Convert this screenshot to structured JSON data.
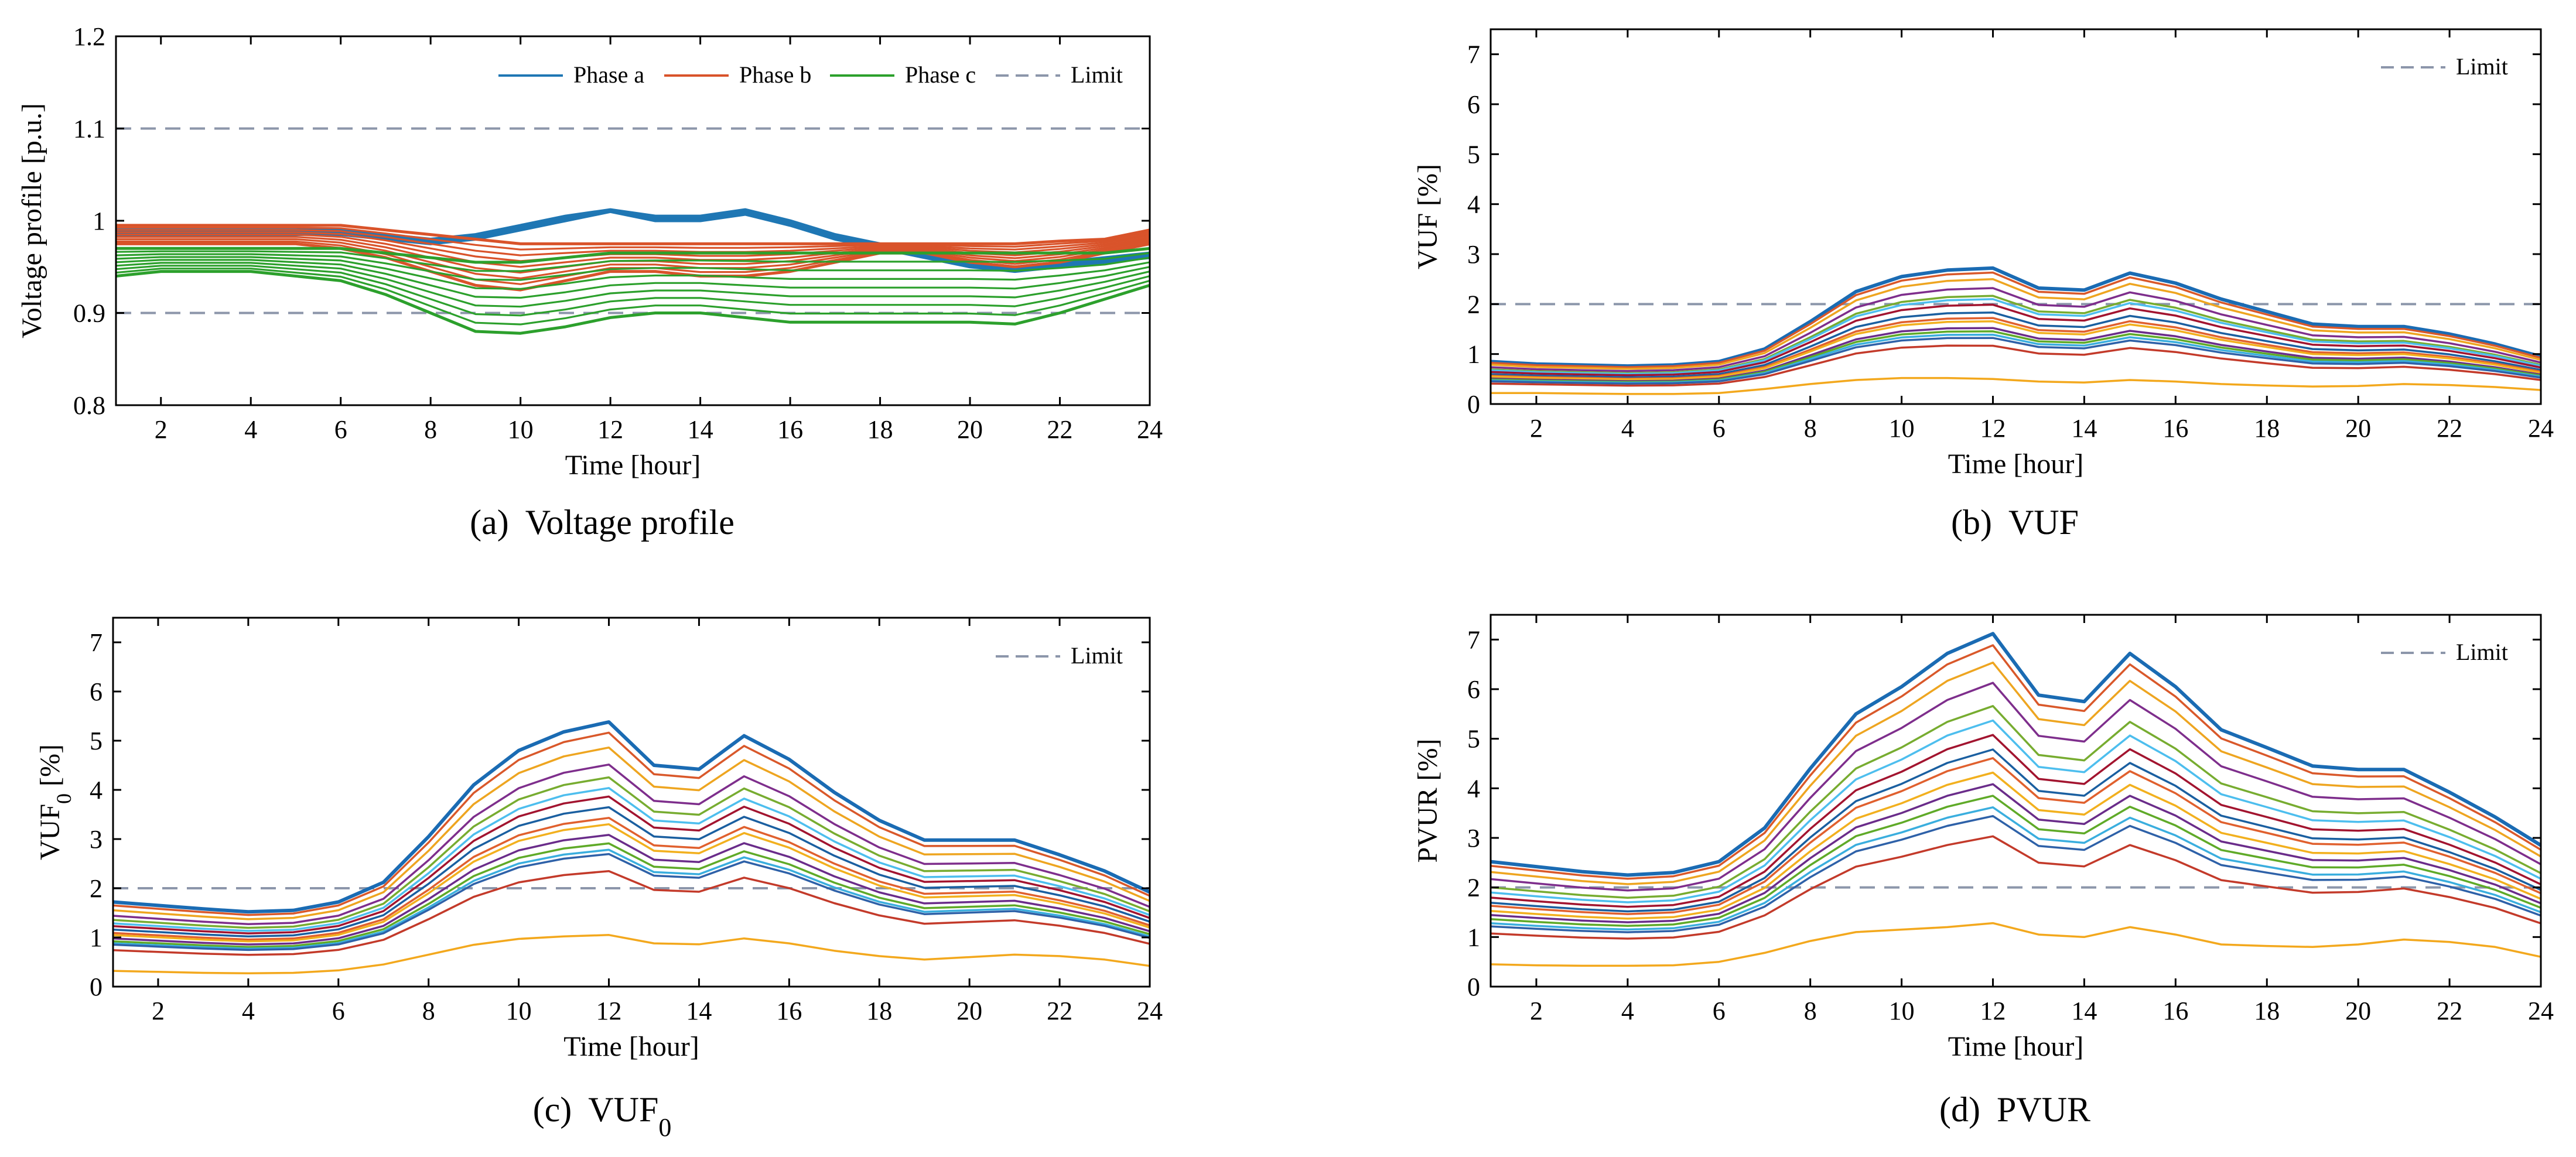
{
  "colors": {
    "phase_a": "#1f77b4",
    "phase_b": "#d9532a",
    "phase_c": "#2ca02c",
    "limit": "#8c96aa",
    "series_palette": [
      "#1a6bb3",
      "#d9582a",
      "#eea520",
      "#7e2e8c",
      "#77ac30",
      "#4dbeee",
      "#a2142f",
      "#1a5fa0",
      "#e0602e",
      "#f2b01e",
      "#6a2c8a",
      "#5faa28",
      "#3aaede",
      "#2e61a8",
      "#c33a2a",
      "#f3a81d",
      "#1e7bc1"
    ]
  },
  "chart_data": [
    {
      "id": "a",
      "type": "line",
      "caption_label": "(a)",
      "caption_text": "Voltage profile",
      "xlabel": "Time [hour]",
      "ylabel": "Voltage profile [p.u.]",
      "xlim": [
        1,
        24
      ],
      "ylim": [
        0.8,
        1.2
      ],
      "xticks": [
        2,
        4,
        6,
        8,
        10,
        12,
        14,
        16,
        18,
        20,
        22,
        24
      ],
      "yticks": [
        0.8,
        0.9,
        1,
        1.1,
        1.2
      ],
      "ytick_labels": [
        "0.8",
        "0.9",
        "1",
        "1.1",
        "1.2"
      ],
      "limits": [
        1.1,
        0.9
      ],
      "legend": [
        "Phase a",
        "Phase b",
        "Phase c",
        "Limit"
      ],
      "x": [
        1,
        2,
        3,
        4,
        5,
        6,
        7,
        8,
        9,
        10,
        11,
        12,
        13,
        14,
        15,
        16,
        17,
        18,
        19,
        20,
        21,
        22,
        23,
        24
      ],
      "phase_bases": {
        "a": [
          [
            0.99,
            0.99,
            0.99,
            0.99,
            0.99,
            0.99,
            0.985,
            0.98,
            0.985,
            0.995,
            1.005,
            1.012,
            1.005,
            1.005,
            1.012,
            1.0,
            0.985,
            0.975,
            0.965,
            0.955,
            0.95,
            0.955,
            0.96,
            0.965
          ],
          [
            0.985,
            0.985,
            0.985,
            0.985,
            0.985,
            0.985,
            0.98,
            0.975,
            0.98,
            0.99,
            1.0,
            1.01,
            1.0,
            1.0,
            1.007,
            0.995,
            0.98,
            0.97,
            0.96,
            0.95,
            0.945,
            0.95,
            0.955,
            0.96
          ]
        ],
        "b": [
          [
            0.995,
            0.995,
            0.995,
            0.995,
            0.995,
            0.995,
            0.99,
            0.985,
            0.98,
            0.975,
            0.975,
            0.975,
            0.975,
            0.975,
            0.975,
            0.975,
            0.975,
            0.975,
            0.975,
            0.975,
            0.975,
            0.978,
            0.98,
            0.99
          ],
          [
            0.975,
            0.975,
            0.975,
            0.975,
            0.975,
            0.97,
            0.96,
            0.945,
            0.93,
            0.925,
            0.935,
            0.945,
            0.945,
            0.94,
            0.94,
            0.945,
            0.955,
            0.965,
            0.965,
            0.955,
            0.95,
            0.955,
            0.965,
            0.975
          ]
        ],
        "c": [
          [
            0.97,
            0.97,
            0.97,
            0.97,
            0.97,
            0.97,
            0.965,
            0.96,
            0.955,
            0.955,
            0.96,
            0.965,
            0.965,
            0.965,
            0.965,
            0.965,
            0.965,
            0.965,
            0.965,
            0.965,
            0.965,
            0.965,
            0.965,
            0.97
          ],
          [
            0.94,
            0.945,
            0.945,
            0.945,
            0.94,
            0.935,
            0.92,
            0.9,
            0.88,
            0.878,
            0.885,
            0.895,
            0.9,
            0.9,
            0.895,
            0.89,
            0.89,
            0.89,
            0.89,
            0.89,
            0.888,
            0.9,
            0.915,
            0.93
          ]
        ]
      },
      "series_per_phase": 9
    },
    {
      "id": "b",
      "type": "line",
      "caption_label": "(b)",
      "caption_text": "VUF",
      "xlabel": "Time [hour]",
      "ylabel": "VUF [%]",
      "xlim": [
        1,
        24
      ],
      "ylim": [
        0,
        7.5
      ],
      "xticks": [
        2,
        4,
        6,
        8,
        10,
        12,
        14,
        16,
        18,
        20,
        22,
        24
      ],
      "yticks": [
        0,
        1,
        2,
        3,
        4,
        5,
        6,
        7
      ],
      "ytick_labels": [
        "0",
        "1",
        "2",
        "3",
        "4",
        "5",
        "6",
        "7"
      ],
      "limits": [
        2
      ],
      "legend": [
        "Limit"
      ],
      "x": [
        1,
        2,
        3,
        4,
        5,
        6,
        7,
        8,
        9,
        10,
        11,
        12,
        13,
        14,
        15,
        16,
        17,
        18,
        19,
        20,
        21,
        22,
        23,
        24
      ],
      "top": [
        0.85,
        0.8,
        0.78,
        0.76,
        0.78,
        0.85,
        1.1,
        1.65,
        2.25,
        2.55,
        2.68,
        2.72,
        2.32,
        2.28,
        2.62,
        2.42,
        2.1,
        1.85,
        1.6,
        1.55,
        1.55,
        1.4,
        1.2,
        0.95
      ],
      "bottom": [
        0.22,
        0.22,
        0.21,
        0.2,
        0.2,
        0.22,
        0.3,
        0.4,
        0.48,
        0.52,
        0.52,
        0.5,
        0.45,
        0.43,
        0.48,
        0.45,
        0.4,
        0.37,
        0.35,
        0.36,
        0.4,
        0.38,
        0.34,
        0.28
      ],
      "fractions": [
        1.0,
        0.96,
        0.9,
        0.82,
        0.75,
        0.72,
        0.67,
        0.6,
        0.55,
        0.52,
        0.46,
        0.43,
        0.4,
        0.37,
        0.3,
        0.0
      ]
    },
    {
      "id": "c",
      "type": "line",
      "caption_label": "(c)",
      "caption_text": "VUF",
      "caption_sub": "0",
      "xlabel": "Time [hour]",
      "ylabel": "VUF",
      "ylabel_sub": "0",
      "ylabel_suffix": " [%]",
      "xlim": [
        1,
        24
      ],
      "ylim": [
        0,
        7.5
      ],
      "xticks": [
        2,
        4,
        6,
        8,
        10,
        12,
        14,
        16,
        18,
        20,
        22,
        24
      ],
      "yticks": [
        0,
        1,
        2,
        3,
        4,
        5,
        6,
        7
      ],
      "ytick_labels": [
        "0",
        "1",
        "2",
        "3",
        "4",
        "5",
        "6",
        "7"
      ],
      "limits": [
        2
      ],
      "legend": [
        "Limit"
      ],
      "x": [
        1,
        2,
        3,
        4,
        5,
        6,
        7,
        8,
        9,
        10,
        11,
        12,
        13,
        14,
        15,
        16,
        17,
        18,
        19,
        20,
        21,
        22,
        23,
        24
      ],
      "top": [
        1.72,
        1.65,
        1.58,
        1.52,
        1.55,
        1.72,
        2.12,
        3.05,
        4.1,
        4.8,
        5.18,
        5.38,
        4.5,
        4.42,
        5.1,
        4.62,
        3.95,
        3.38,
        2.98,
        2.98,
        2.98,
        2.68,
        2.35,
        1.92
      ],
      "bottom": [
        0.32,
        0.3,
        0.28,
        0.27,
        0.28,
        0.33,
        0.45,
        0.65,
        0.85,
        0.97,
        1.02,
        1.05,
        0.88,
        0.86,
        0.98,
        0.88,
        0.73,
        0.62,
        0.55,
        0.6,
        0.65,
        0.62,
        0.55,
        0.42
      ],
      "fractions": [
        1.0,
        0.95,
        0.88,
        0.8,
        0.74,
        0.69,
        0.65,
        0.6,
        0.55,
        0.52,
        0.47,
        0.43,
        0.4,
        0.38,
        0.3,
        0.0
      ]
    },
    {
      "id": "d",
      "type": "line",
      "caption_label": "(d)",
      "caption_text": "PVUR",
      "xlabel": "Time [hour]",
      "ylabel": "PVUR [%]",
      "xlim": [
        1,
        24
      ],
      "ylim": [
        0,
        7.5
      ],
      "xticks": [
        2,
        4,
        6,
        8,
        10,
        12,
        14,
        16,
        18,
        20,
        22,
        24
      ],
      "yticks": [
        0,
        1,
        2,
        3,
        4,
        5,
        6,
        7
      ],
      "ytick_labels": [
        "0",
        "1",
        "2",
        "3",
        "4",
        "5",
        "6",
        "7"
      ],
      "limits": [
        2
      ],
      "legend": [
        "Limit"
      ],
      "x": [
        1,
        2,
        3,
        4,
        5,
        6,
        7,
        8,
        9,
        10,
        11,
        12,
        13,
        14,
        15,
        16,
        17,
        18,
        19,
        20,
        21,
        22,
        23,
        24
      ],
      "top": [
        2.52,
        2.42,
        2.32,
        2.25,
        2.3,
        2.52,
        3.2,
        4.4,
        5.5,
        6.05,
        6.72,
        7.12,
        5.88,
        5.75,
        6.72,
        6.05,
        5.18,
        4.82,
        4.45,
        4.38,
        4.38,
        3.92,
        3.42,
        2.85
      ],
      "bottom": [
        0.45,
        0.43,
        0.42,
        0.42,
        0.43,
        0.5,
        0.68,
        0.92,
        1.1,
        1.15,
        1.2,
        1.28,
        1.05,
        1.0,
        1.2,
        1.05,
        0.85,
        0.82,
        0.8,
        0.85,
        0.95,
        0.9,
        0.8,
        0.6
      ],
      "fractions": [
        1.0,
        0.96,
        0.9,
        0.83,
        0.75,
        0.7,
        0.65,
        0.6,
        0.57,
        0.52,
        0.48,
        0.44,
        0.4,
        0.37,
        0.3,
        0.0
      ]
    }
  ]
}
